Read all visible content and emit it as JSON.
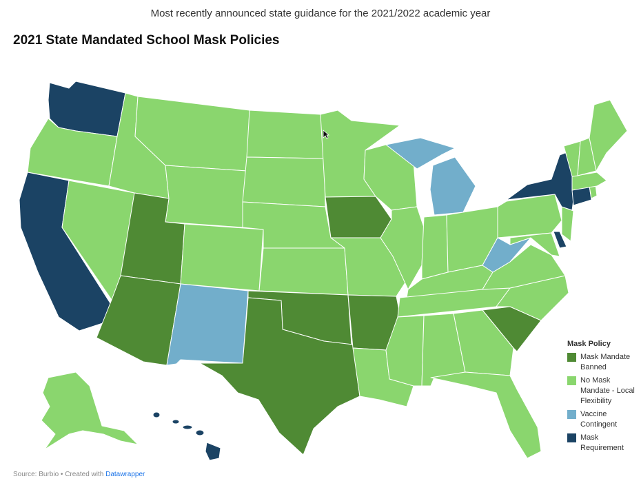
{
  "header": {
    "subtitle": "Most recently announced state guidance for the 2021/2022 academic year",
    "title": "2021 State Mandated School Mask Policies"
  },
  "legend": {
    "title": "Mask Policy",
    "items": [
      {
        "key": "banned",
        "label": "Mask Mandate Banned",
        "color": "#4f8a34"
      },
      {
        "key": "local",
        "label": "No Mask Mandate - Local Flexibility",
        "color": "#8ad66e"
      },
      {
        "key": "vaccine",
        "label": "Vaccine Contingent",
        "color": "#72aecb"
      },
      {
        "key": "required",
        "label": "Mask Requirement",
        "color": "#1b4364"
      }
    ]
  },
  "map_data": {
    "type": "choropleth",
    "region": "United States",
    "categories": {
      "required": [
        "Washington",
        "California",
        "New York",
        "Connecticut",
        "Delaware",
        "Hawaii"
      ],
      "banned": [
        "Utah",
        "Arizona",
        "Texas",
        "Oklahoma",
        "Arkansas",
        "Iowa",
        "South Carolina"
      ],
      "vaccine": [
        "New Mexico",
        "Michigan",
        "West Virginia"
      ],
      "local": [
        "Oregon",
        "Idaho",
        "Montana",
        "Wyoming",
        "Nevada",
        "Colorado",
        "North Dakota",
        "South Dakota",
        "Nebraska",
        "Kansas",
        "Minnesota",
        "Wisconsin",
        "Illinois",
        "Missouri",
        "Louisiana",
        "Mississippi",
        "Alabama",
        "Georgia",
        "Florida",
        "Tennessee",
        "Kentucky",
        "Indiana",
        "Ohio",
        "Pennsylvania",
        "Virginia",
        "North Carolina",
        "Maryland",
        "New Jersey",
        "Vermont",
        "New Hampshire",
        "Maine",
        "Massachusetts",
        "Rhode Island",
        "Alaska"
      ]
    }
  },
  "footer": {
    "source": "Source: Burbio • Created with",
    "tool": "Datawrapper"
  }
}
